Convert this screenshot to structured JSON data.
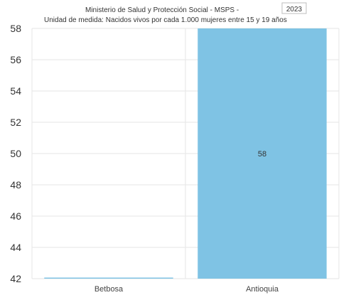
{
  "header": {
    "source": "Ministerio de Salud y Protección Social - MSPS -",
    "year": "2023",
    "unit": "Unidad de medida: Nacidos vivos por cada 1.000 mujeres entre 15 y 19 años"
  },
  "colors": {
    "bar": "#7fc3e4",
    "grid": "#e6e6e6"
  },
  "chart_data": {
    "type": "bar",
    "categories": [
      "Betbosa",
      "Antioquia"
    ],
    "values": [
      42.05,
      58
    ],
    "data_labels": [
      "",
      "58"
    ],
    "ylim": [
      42,
      58
    ],
    "yticks": [
      "42",
      "44",
      "46",
      "48",
      "50",
      "52",
      "54",
      "56",
      "58"
    ],
    "grid": true
  }
}
